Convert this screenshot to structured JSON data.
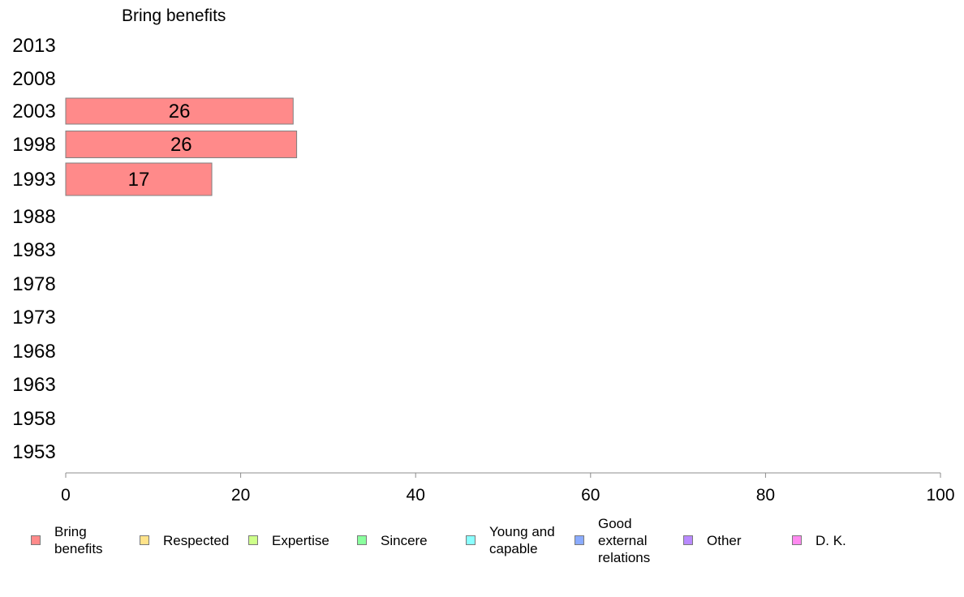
{
  "chart_data": {
    "type": "bar",
    "orientation": "horizontal",
    "title": "Bring benefits",
    "categories": [
      "2013",
      "2008",
      "2003",
      "1998",
      "1993",
      "1988",
      "1983",
      "1978",
      "1973",
      "1968",
      "1963",
      "1958",
      "1953"
    ],
    "series": [
      {
        "name": "Bring benefits",
        "values": [
          null,
          null,
          26,
          26.4,
          16.7,
          null,
          null,
          null,
          null,
          null,
          null,
          null,
          null
        ],
        "labels": [
          "",
          "",
          "26",
          "26",
          "17",
          "",
          "",
          "",
          "",
          "",
          "",
          "",
          ""
        ]
      }
    ],
    "xlim": [
      0,
      100
    ],
    "xticks": [
      0,
      20,
      40,
      60,
      80,
      100
    ],
    "grid": false,
    "legend_position": "bottom",
    "legend": [
      {
        "label": "Bring\nbenefits",
        "color": "#ff8a8a"
      },
      {
        "label": "Respected",
        "color": "#ffe38a"
      },
      {
        "label": "Expertise",
        "color": "#ceff8a"
      },
      {
        "label": "Sincere",
        "color": "#8aff9e"
      },
      {
        "label": "Young and\ncapable",
        "color": "#8affff"
      },
      {
        "label": "Good\nexternal\nrelations",
        "color": "#8aabff"
      },
      {
        "label": "Other",
        "color": "#b98aff"
      },
      {
        "label": "D. K.",
        "color": "#ff8af0"
      }
    ],
    "bar_color": "#ff8a8a",
    "axis_color": "#8c8c8c"
  }
}
